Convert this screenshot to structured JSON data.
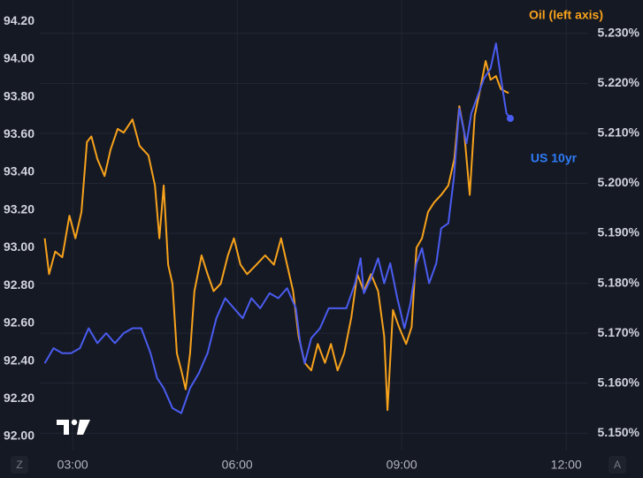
{
  "chart_data": {
    "type": "line",
    "series": [
      {
        "name": "Oil (left axis)",
        "color": "#f7a21b",
        "axis": "y",
        "x": [
          2.49,
          2.57,
          2.68,
          2.81,
          2.94,
          3.05,
          3.16,
          3.26,
          3.34,
          3.45,
          3.58,
          3.69,
          3.82,
          3.93,
          4.09,
          4.22,
          4.38,
          4.5,
          4.58,
          4.66,
          4.74,
          4.82,
          4.9,
          4.98,
          5.06,
          5.14,
          5.22,
          5.35,
          5.46,
          5.57,
          5.7,
          5.83,
          5.94,
          6.06,
          6.18,
          6.35,
          6.51,
          6.67,
          6.8,
          6.91,
          7.02,
          7.12,
          7.23,
          7.35,
          7.47,
          7.6,
          7.71,
          7.83,
          7.95,
          8.08,
          8.19,
          8.31,
          8.44,
          8.57,
          8.68,
          8.74,
          8.84,
          8.95,
          9.08,
          9.18,
          9.27,
          9.37,
          9.48,
          9.59,
          9.72,
          9.85,
          9.96,
          10.05,
          10.14,
          10.24,
          10.33,
          10.43,
          10.53,
          10.62,
          10.72,
          10.81,
          10.95
        ],
        "values": [
          93.05,
          92.86,
          92.98,
          92.95,
          93.17,
          93.05,
          93.19,
          93.56,
          93.59,
          93.47,
          93.38,
          93.52,
          93.63,
          93.61,
          93.68,
          93.54,
          93.49,
          93.33,
          93.05,
          93.33,
          92.91,
          92.81,
          92.44,
          92.35,
          92.25,
          92.44,
          92.77,
          92.96,
          92.86,
          92.77,
          92.81,
          92.96,
          93.05,
          92.91,
          92.86,
          92.91,
          92.96,
          92.91,
          93.05,
          92.91,
          92.77,
          92.53,
          92.39,
          92.35,
          92.49,
          92.39,
          92.49,
          92.35,
          92.44,
          92.63,
          92.86,
          92.77,
          92.86,
          92.77,
          92.53,
          92.14,
          92.67,
          92.58,
          92.49,
          92.58,
          93.0,
          93.05,
          93.19,
          93.24,
          93.28,
          93.33,
          93.47,
          93.75,
          93.61,
          93.28,
          93.7,
          93.84,
          93.99,
          93.89,
          93.91,
          93.84,
          93.82
        ]
      },
      {
        "name": "US 10yr",
        "color": "#4a5cf0",
        "label_color": "#2e7cf6",
        "axis": "y2",
        "x": [
          2.49,
          2.65,
          2.81,
          2.97,
          3.13,
          3.29,
          3.45,
          3.61,
          3.77,
          3.93,
          4.09,
          4.25,
          4.42,
          4.54,
          4.66,
          4.82,
          4.98,
          5.14,
          5.3,
          5.46,
          5.62,
          5.78,
          5.94,
          6.1,
          6.26,
          6.42,
          6.59,
          6.75,
          6.91,
          7.07,
          7.15,
          7.23,
          7.35,
          7.51,
          7.67,
          7.83,
          7.99,
          8.15,
          8.25,
          8.31,
          8.44,
          8.57,
          8.68,
          8.79,
          8.92,
          9.05,
          9.16,
          9.27,
          9.37,
          9.5,
          9.63,
          9.72,
          9.85,
          9.95,
          10.05,
          10.18,
          10.27,
          10.37,
          10.5,
          10.62,
          10.72,
          10.81,
          10.91,
          10.98
        ],
        "values": [
          5.164,
          5.167,
          5.166,
          5.166,
          5.167,
          5.171,
          5.168,
          5.17,
          5.168,
          5.17,
          5.171,
          5.171,
          5.166,
          5.161,
          5.159,
          5.155,
          5.154,
          5.159,
          5.162,
          5.166,
          5.173,
          5.177,
          5.175,
          5.173,
          5.177,
          5.175,
          5.178,
          5.177,
          5.179,
          5.175,
          5.168,
          5.164,
          5.169,
          5.171,
          5.175,
          5.175,
          5.175,
          5.18,
          5.185,
          5.178,
          5.181,
          5.185,
          5.18,
          5.184,
          5.177,
          5.171,
          5.176,
          5.184,
          5.187,
          5.18,
          5.184,
          5.191,
          5.192,
          5.201,
          5.215,
          5.208,
          5.214,
          5.217,
          5.221,
          5.223,
          5.228,
          5.221,
          5.214,
          5.213
        ]
      }
    ],
    "xlim": [
      2.4,
      12.4
    ],
    "xticks": [
      {
        "value": 3,
        "label": "03:00"
      },
      {
        "value": 6,
        "label": "06:00"
      },
      {
        "value": 9,
        "label": "09:00"
      },
      {
        "value": 12,
        "label": "12:00"
      }
    ],
    "ylim": [
      91.925,
      94.313
    ],
    "yticks": [
      {
        "value": 92.0,
        "label": "92.00"
      },
      {
        "value": 92.2,
        "label": "92.20"
      },
      {
        "value": 92.4,
        "label": "92.40"
      },
      {
        "value": 92.6,
        "label": "92.60"
      },
      {
        "value": 92.8,
        "label": "92.80"
      },
      {
        "value": 93.0,
        "label": "93.00"
      },
      {
        "value": 93.2,
        "label": "93.20"
      },
      {
        "value": 93.4,
        "label": "93.40"
      },
      {
        "value": 93.6,
        "label": "93.60"
      },
      {
        "value": 93.8,
        "label": "93.80"
      },
      {
        "value": 94.0,
        "label": "94.00"
      },
      {
        "value": 94.2,
        "label": "94.20"
      }
    ],
    "y2lim": [
      5.1465,
      5.2367
    ],
    "y2ticks": [
      {
        "value": 5.15,
        "label": "5.150%"
      },
      {
        "value": 5.16,
        "label": "5.160%"
      },
      {
        "value": 5.17,
        "label": "5.170%"
      },
      {
        "value": 5.18,
        "label": "5.180%"
      },
      {
        "value": 5.19,
        "label": "5.190%"
      },
      {
        "value": 5.2,
        "label": "5.200%"
      },
      {
        "value": 5.21,
        "label": "5.210%"
      },
      {
        "value": 5.22,
        "label": "5.220%"
      },
      {
        "value": 5.23,
        "label": "5.230%"
      }
    ],
    "grid": true,
    "corner_buttons": {
      "left": "Z",
      "right": "A"
    }
  }
}
